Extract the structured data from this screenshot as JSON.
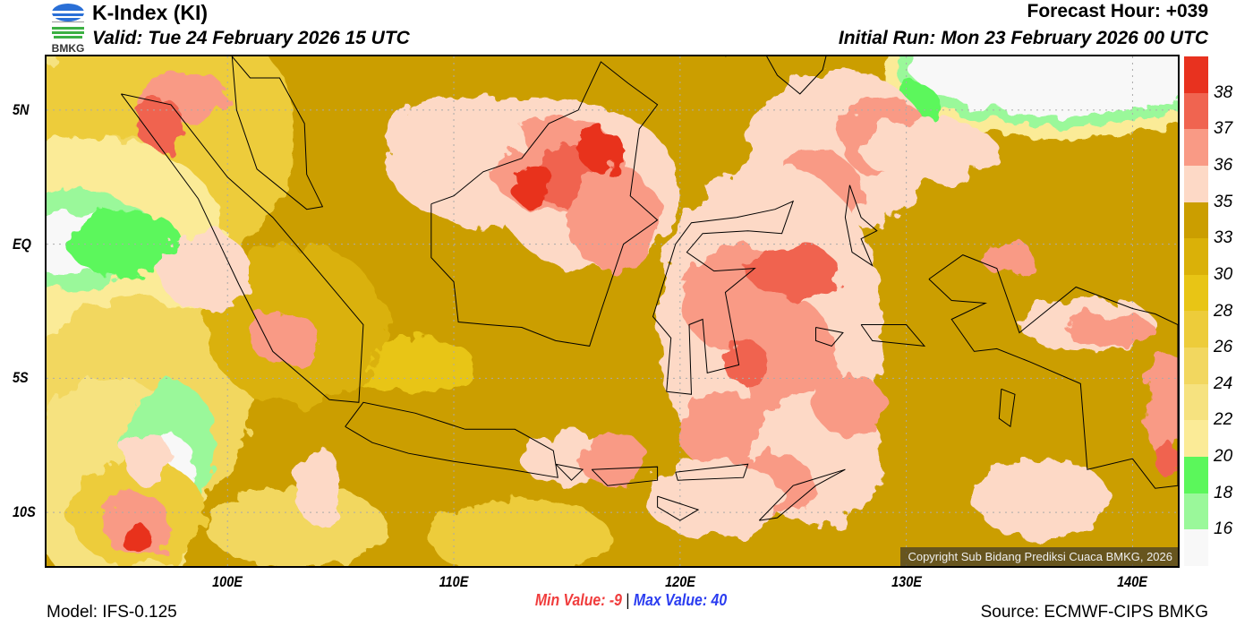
{
  "header": {
    "logo_text": "BMKG",
    "title": "K-Index (KI)",
    "valid": "Valid: Tue 24 February 2026 15 UTC",
    "forecast_hour": "Forecast Hour: +039",
    "initial_run": "Initial Run: Mon 23 February 2026 00 UTC"
  },
  "map": {
    "lon_range": [
      92,
      142
    ],
    "lat_range": [
      -12,
      7
    ],
    "x_ticks": [
      {
        "lon": 100,
        "label": "100E"
      },
      {
        "lon": 110,
        "label": "110E"
      },
      {
        "lon": 120,
        "label": "120E"
      },
      {
        "lon": 130,
        "label": "130E"
      },
      {
        "lon": 140,
        "label": "140E"
      }
    ],
    "y_ticks": [
      {
        "lat": 5,
        "label": "5N"
      },
      {
        "lat": 0,
        "label": "EQ"
      },
      {
        "lat": -5,
        "label": "5S"
      },
      {
        "lat": -10,
        "label": "10S"
      }
    ],
    "copyright": "Copyright Sub Bidang Prediksi Cuaca BMKG, 2026"
  },
  "colorbar": {
    "colors": [
      "#e8321f",
      "#f06450",
      "#f99a85",
      "#fdd9c6",
      "#cb9e00",
      "#dab108",
      "#e8c515",
      "#edcc3a",
      "#f2d75f",
      "#f6e27f",
      "#fbeb97",
      "#5bf75b",
      "#9af89a",
      "#f8f8f8"
    ],
    "labels": [
      "38",
      "37",
      "36",
      "35",
      "33",
      "30",
      "28",
      "26",
      "24",
      "22",
      "20",
      "18",
      "16"
    ]
  },
  "footer": {
    "min_label": "Min Value:",
    "min_value": "-9",
    "separator": "|",
    "max_label": "Max Value:",
    "max_value": "40",
    "model": "Model: IFS-0.125",
    "source": "Source: ECMWF-CIPS BMKG"
  }
}
